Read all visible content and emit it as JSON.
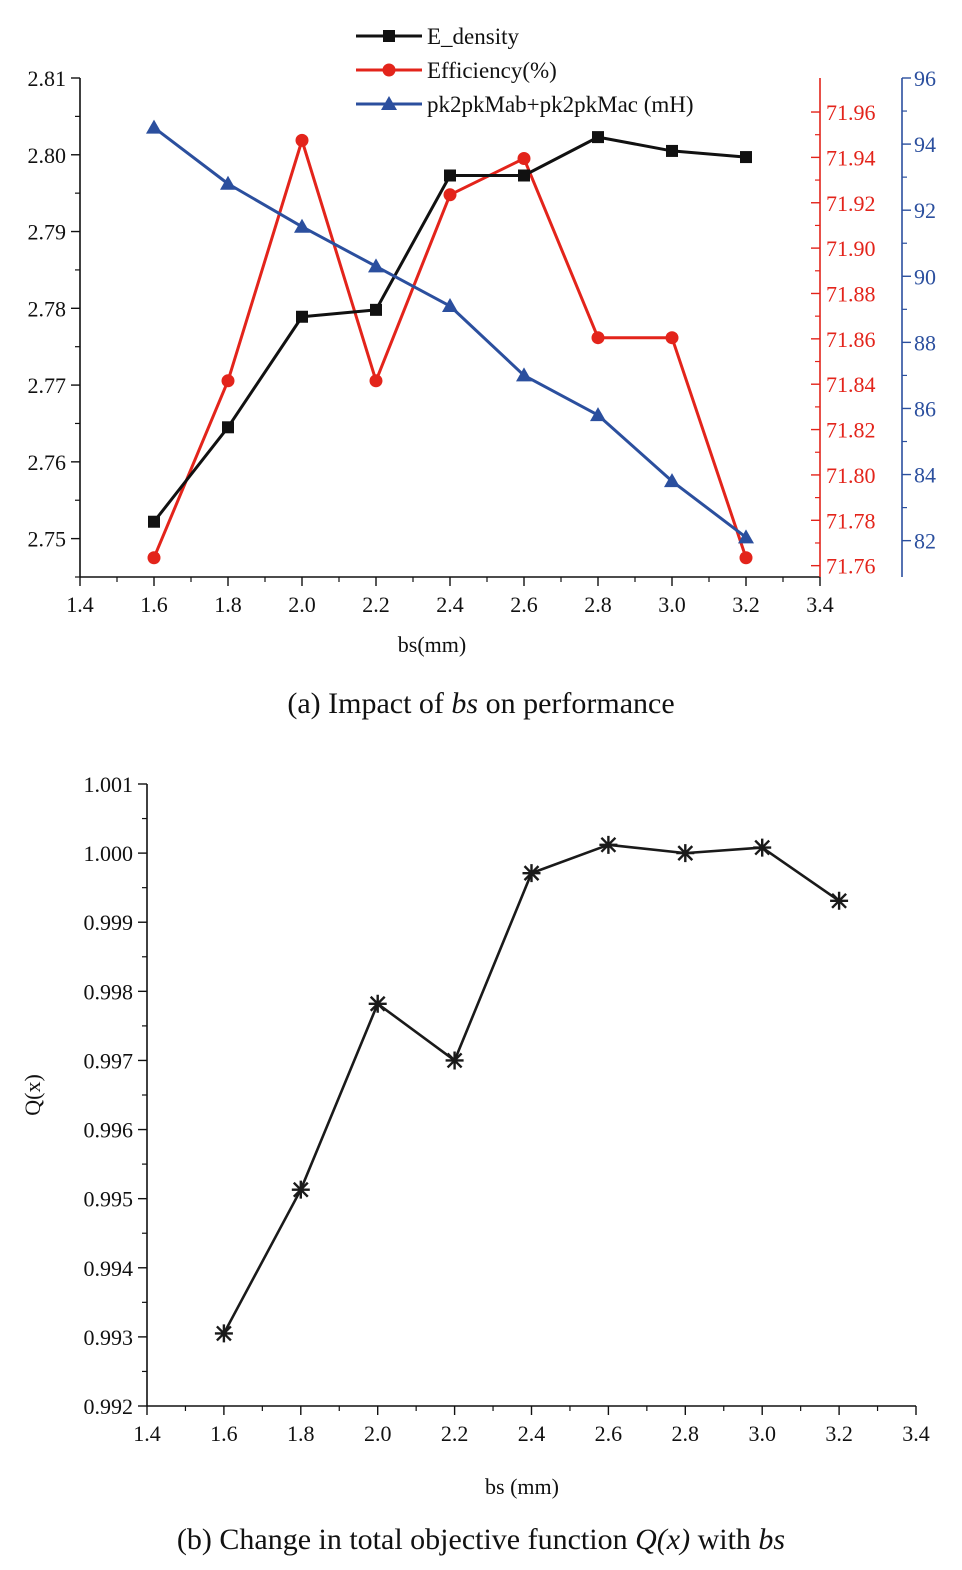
{
  "chart_data": [
    {
      "type": "line",
      "caption_parts": [
        "(a) Impact of ",
        "bs",
        " on performance"
      ],
      "xlabel": "bs(mm)",
      "xlim": [
        1.4,
        3.4
      ],
      "xticks": [
        "1.4",
        "1.6",
        "1.8",
        "2.0",
        "2.2",
        "2.4",
        "2.6",
        "2.8",
        "3.0",
        "3.2",
        "3.4"
      ],
      "x": [
        1.6,
        1.8,
        2.0,
        2.2,
        2.4,
        2.6,
        2.8,
        3.0,
        3.2
      ],
      "legend_position": "top-center",
      "axes": {
        "left": {
          "ylim": [
            2.745,
            2.81
          ],
          "ticks": [
            "2.75",
            "2.76",
            "2.77",
            "2.78",
            "2.79",
            "2.80",
            "2.81"
          ],
          "color": "#1a1a1a"
        },
        "right1": {
          "ylim": [
            71.755,
            71.975
          ],
          "ticks": [
            "71.76",
            "71.78",
            "71.80",
            "71.82",
            "71.84",
            "71.86",
            "71.88",
            "71.90",
            "71.92",
            "71.94",
            "71.96"
          ],
          "color": "#e3241b"
        },
        "right2": {
          "ylim": [
            80.9,
            96.0
          ],
          "ticks": [
            "82",
            "84",
            "86",
            "88",
            "90",
            "92",
            "94",
            "96"
          ],
          "color": "#2b4f9e"
        }
      },
      "series": [
        {
          "name": "E_density",
          "axis": "left",
          "color": "#111111",
          "marker": "square",
          "values": [
            2.7522,
            2.7645,
            2.7789,
            2.7798,
            2.7973,
            2.7973,
            2.8023,
            2.8005,
            2.7997
          ]
        },
        {
          "name": "Efficiency(%)",
          "axis": "right1",
          "color": "#e3241b",
          "marker": "circle",
          "values": [
            71.7635,
            71.8415,
            71.9475,
            71.8415,
            71.9235,
            71.9395,
            71.8605,
            71.8605,
            71.7635
          ]
        },
        {
          "name": "pk2pkMab+pk2pkMac (mH)",
          "axis": "right2",
          "color": "#2b4f9e",
          "marker": "triangle",
          "values": [
            94.5,
            92.8,
            91.5,
            90.3,
            89.1,
            87.0,
            85.8,
            83.8,
            82.1
          ]
        }
      ]
    },
    {
      "type": "line",
      "caption_parts": [
        "(b) Change in total objective function ",
        "Q(x)",
        " with ",
        "bs"
      ],
      "xlabel": "bs (mm)",
      "ylabel": "Q(x)",
      "xlim": [
        1.4,
        3.4
      ],
      "ylim": [
        0.992,
        1.001
      ],
      "xticks": [
        "1.4",
        "1.6",
        "1.8",
        "2.0",
        "2.2",
        "2.4",
        "2.6",
        "2.8",
        "3.0",
        "3.2",
        "3.4"
      ],
      "yticks": [
        "0.992",
        "0.993",
        "0.994",
        "0.995",
        "0.996",
        "0.997",
        "0.998",
        "0.999",
        "1.000",
        "1.001"
      ],
      "x": [
        1.6,
        1.8,
        2.0,
        2.2,
        2.4,
        2.6,
        2.8,
        3.0,
        3.2
      ],
      "series": [
        {
          "marker": "asterisk",
          "color": "#1a1a1a",
          "values": [
            0.99305,
            0.99513,
            0.99782,
            0.997,
            0.99971,
            1.00012,
            1.0,
            1.00008,
            0.99931
          ]
        }
      ]
    }
  ]
}
